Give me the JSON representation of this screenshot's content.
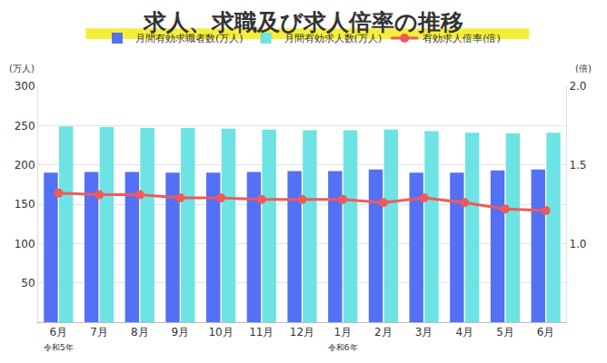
{
  "chart_data": {
    "type": "bar",
    "title": "求人、求職及び求人倍率の推移",
    "ylabel": "(万人)",
    "y2label": "(倍)",
    "categories": [
      "6月\n令和5年",
      "7月",
      "8月",
      "9月",
      "10月",
      "11月",
      "12月",
      "1月\n令和6年",
      "2月",
      "3月",
      "4月",
      "5月",
      "6月"
    ],
    "series": [
      {
        "name": "月間有効求職者数(万人)",
        "type": "bar",
        "color": "#5470f5",
        "values": [
          190,
          191,
          191,
          190,
          190,
          191,
          192,
          192,
          194,
          190,
          190,
          193,
          194
        ]
      },
      {
        "name": "月間有効求人数(万人)",
        "type": "bar",
        "color": "#6de3e3",
        "values": [
          249,
          248,
          247,
          247,
          246,
          245,
          244,
          244,
          245,
          243,
          241,
          240,
          241
        ]
      },
      {
        "name": "有効求人倍率(倍)",
        "type": "line",
        "axis": "y2",
        "color": "#ef5a5a",
        "marker": "circle",
        "values": [
          1.32,
          1.31,
          1.31,
          1.29,
          1.29,
          1.28,
          1.28,
          1.28,
          1.26,
          1.29,
          1.26,
          1.22,
          1.21
        ]
      }
    ],
    "ylim": [
      0,
      300
    ],
    "yticks": [
      50,
      100,
      150,
      200,
      250,
      300
    ],
    "y2lim": [
      0.5,
      2.0
    ],
    "y2ticks": [
      {
        "value": 1.0,
        "label": "1.0"
      },
      {
        "value": 1.5,
        "label": "1.5"
      },
      {
        "value": 2.0,
        "label": "2.0"
      }
    ],
    "grid": true,
    "legend": "top"
  }
}
